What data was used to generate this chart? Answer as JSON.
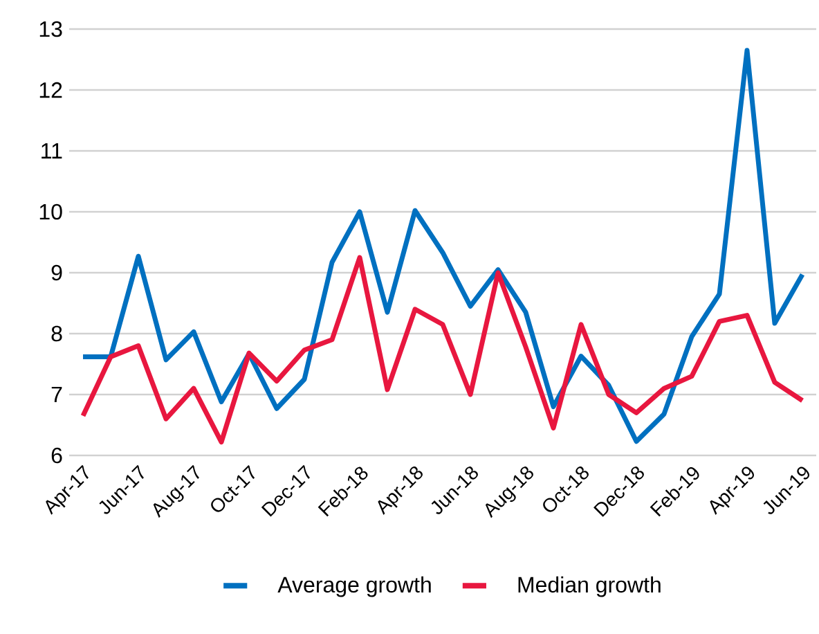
{
  "chart_data": {
    "type": "line",
    "categories": [
      "Apr-17",
      null,
      "Jun-17",
      null,
      "Aug-17",
      null,
      "Oct-17",
      null,
      "Dec-17",
      null,
      "Feb-18",
      null,
      "Apr-18",
      null,
      "Jun-18",
      null,
      "Aug-18",
      null,
      "Oct-18",
      null,
      "Dec-18",
      null,
      "Feb-19",
      null,
      "Apr-19",
      null,
      "Jun-19"
    ],
    "series": [
      {
        "name": "Average growth",
        "color": "#0070c0",
        "values": [
          7.62,
          7.62,
          9.27,
          7.57,
          8.03,
          6.88,
          7.67,
          6.77,
          7.25,
          9.17,
          10.0,
          8.35,
          10.02,
          9.33,
          8.45,
          9.05,
          8.35,
          6.8,
          7.63,
          7.15,
          6.23,
          6.68,
          7.95,
          8.65,
          12.65,
          8.17,
          8.97
        ]
      },
      {
        "name": "Median growth",
        "color": "#e8173f",
        "values": [
          6.65,
          7.62,
          7.8,
          6.6,
          7.1,
          6.22,
          7.68,
          7.22,
          7.73,
          7.9,
          9.25,
          7.08,
          8.4,
          8.15,
          7.0,
          9.0,
          7.78,
          6.45,
          8.15,
          7.0,
          6.7,
          7.1,
          7.3,
          8.2,
          8.3,
          7.2,
          6.9
        ]
      }
    ],
    "ylim": [
      6,
      13
    ],
    "yticks": [
      6,
      7,
      8,
      9,
      10,
      11,
      12,
      13
    ],
    "grid": "y",
    "legend": "bottom",
    "marker": "none",
    "line_style": "solid"
  }
}
